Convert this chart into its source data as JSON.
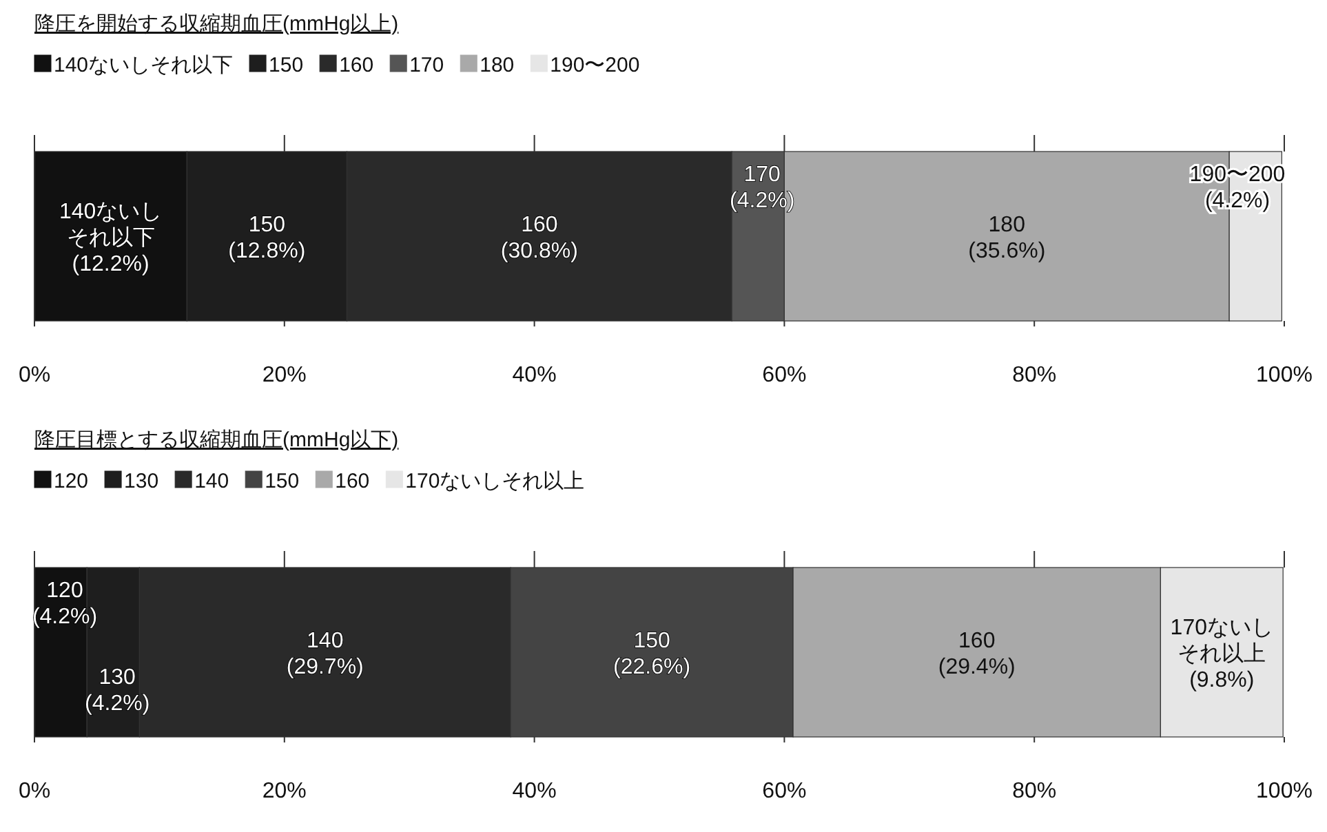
{
  "chart_data": [
    {
      "type": "bar",
      "orientation": "horizontal",
      "stacked": true,
      "title": "降圧を開始する収縮期血圧(mmHg以上)",
      "categories": [
        null
      ],
      "xlim": [
        0,
        100
      ],
      "xticks": [
        {
          "value": 0,
          "label": "0%"
        },
        {
          "value": 20,
          "label": "20%"
        },
        {
          "value": 40,
          "label": "40%"
        },
        {
          "value": 60,
          "label": "60%"
        },
        {
          "value": 80,
          "label": "80%"
        },
        {
          "value": 100,
          "label": "100%"
        }
      ],
      "legend": "top left",
      "series": [
        {
          "name": "140ないしそれ以下",
          "color": "#111111",
          "values": [
            12.2
          ],
          "value_labels": [
            "(12.2%)"
          ]
        },
        {
          "name": "150",
          "color": "#1e1e1e",
          "values": [
            12.8
          ],
          "value_labels": [
            "(12.8%)"
          ]
        },
        {
          "name": "160",
          "color": "#2a2a2a",
          "values": [
            30.8
          ],
          "value_labels": [
            "(30.8%)"
          ]
        },
        {
          "name": "170",
          "color": "#555555",
          "values": [
            4.2
          ],
          "value_labels": [
            "(4.2%)"
          ]
        },
        {
          "name": "180",
          "color": "#a9a9a9",
          "values": [
            35.6
          ],
          "value_labels": [
            "(35.6%)"
          ]
        },
        {
          "name": "190〜200",
          "color": "#e6e6e6",
          "values": [
            4.2
          ],
          "value_labels": [
            "(4.2%)"
          ]
        }
      ]
    },
    {
      "type": "bar",
      "orientation": "horizontal",
      "stacked": true,
      "title": "降圧目標とする収縮期血圧(mmHg以下)",
      "categories": [
        null
      ],
      "xlim": [
        0,
        100
      ],
      "xticks": [
        {
          "value": 0,
          "label": "0%"
        },
        {
          "value": 20,
          "label": "20%"
        },
        {
          "value": 40,
          "label": "40%"
        },
        {
          "value": 60,
          "label": "60%"
        },
        {
          "value": 80,
          "label": "80%"
        },
        {
          "value": 100,
          "label": "100%"
        }
      ],
      "legend": "top left",
      "series": [
        {
          "name": "120",
          "color": "#111111",
          "values": [
            4.2
          ],
          "value_labels": [
            "(4.2%)"
          ]
        },
        {
          "name": "130",
          "color": "#1e1e1e",
          "values": [
            4.2
          ],
          "value_labels": [
            "(4.2%)"
          ]
        },
        {
          "name": "140",
          "color": "#2a2a2a",
          "values": [
            29.7
          ],
          "value_labels": [
            "(29.7%)"
          ]
        },
        {
          "name": "150",
          "color": "#444444",
          "values": [
            22.6
          ],
          "value_labels": [
            "(22.6%)"
          ]
        },
        {
          "name": "160",
          "color": "#a9a9a9",
          "values": [
            29.4
          ],
          "value_labels": [
            "(29.4%)"
          ]
        },
        {
          "name": "170ないしそれ以上",
          "color": "#e6e6e6",
          "values": [
            9.8
          ],
          "value_labels": [
            "(9.8%)"
          ]
        }
      ]
    }
  ]
}
